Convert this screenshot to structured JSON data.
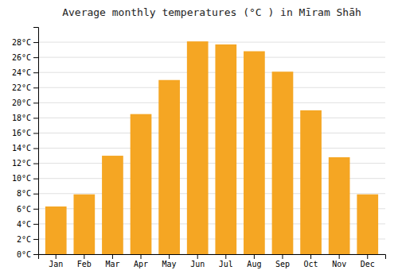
{
  "chart_data": {
    "type": "bar",
    "title": "Average monthly temperatures (°C ) in Mīram Shāh",
    "categories": [
      "Jan",
      "Feb",
      "Mar",
      "Apr",
      "May",
      "Jun",
      "Jul",
      "Aug",
      "Sep",
      "Oct",
      "Nov",
      "Dec"
    ],
    "values": [
      6.3,
      7.9,
      13.0,
      18.5,
      23.0,
      28.1,
      27.7,
      26.8,
      24.1,
      19.0,
      12.8,
      7.9
    ],
    "color": "#F5A623",
    "ylim": [
      0,
      30
    ],
    "yticks": [
      {
        "value": 0,
        "label": "0°C"
      },
      {
        "value": 2,
        "label": "2°C"
      },
      {
        "value": 4,
        "label": "4°C"
      },
      {
        "value": 6,
        "label": "6°C"
      },
      {
        "value": 8,
        "label": "8°C"
      },
      {
        "value": 10,
        "label": "10°C"
      },
      {
        "value": 12,
        "label": "12°C"
      },
      {
        "value": 14,
        "label": "14°C"
      },
      {
        "value": 16,
        "label": "16°C"
      },
      {
        "value": 18,
        "label": "18°C"
      },
      {
        "value": 20,
        "label": "20°C"
      },
      {
        "value": 22,
        "label": "22°C"
      },
      {
        "value": 24,
        "label": "24°C"
      },
      {
        "value": 26,
        "label": "26°C"
      },
      {
        "value": 28,
        "label": "28°C"
      }
    ],
    "grid": true
  }
}
